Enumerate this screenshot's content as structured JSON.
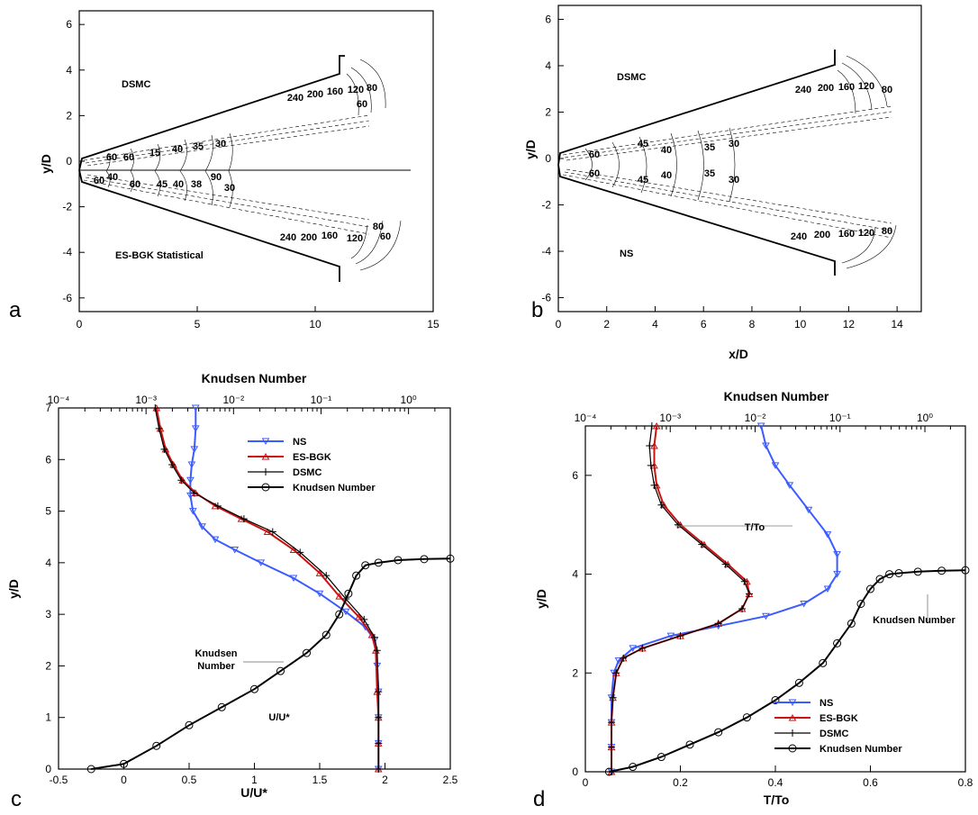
{
  "panels": {
    "a": {
      "letter": "a",
      "ylabel": "y/D",
      "xlabel": "",
      "label_top": "DSMC",
      "label_bottom": "ES-BGK Statistical",
      "xticks": [
        "0",
        "5",
        "10",
        "15"
      ],
      "yticks": [
        "6",
        "4",
        "2",
        "0",
        "-2",
        "-4",
        "-6"
      ],
      "contours_top": [
        "240",
        "200",
        "160",
        "120",
        "80",
        "60",
        "15",
        "40",
        "35",
        "30",
        "60",
        "60"
      ],
      "contours_mid": [
        "40",
        "45",
        "40",
        "38",
        "60",
        "30",
        "60",
        "90"
      ],
      "contours_bottom": [
        "240",
        "200",
        "160",
        "120",
        "80",
        "60"
      ]
    },
    "b": {
      "letter": "b",
      "ylabel": "y/D",
      "xlabel": "x/D",
      "label_top": "DSMC",
      "label_bottom": "NS",
      "xticks": [
        "0",
        "2",
        "4",
        "6",
        "8",
        "10",
        "12",
        "14"
      ],
      "yticks": [
        "6",
        "4",
        "2",
        "0",
        "-2",
        "-4",
        "-6"
      ],
      "contours_top": [
        "240",
        "200",
        "160",
        "120",
        "80",
        "60",
        "45",
        "40",
        "35",
        "30"
      ],
      "contours_bottom": [
        "240",
        "200",
        "160",
        "120",
        "80",
        "60",
        "45",
        "40",
        "35",
        "30"
      ]
    },
    "c": {
      "letter": "c",
      "top_title": "Knudsen Number",
      "xlabel": "U/U*",
      "ylabel": "y/D",
      "top_ticks": [
        "10⁻⁴",
        "10⁻³",
        "10⁻²",
        "10⁻¹",
        "10⁰"
      ],
      "xticks": [
        "-0.5",
        "0",
        "0.5",
        "1",
        "1.5",
        "2",
        "2.5"
      ],
      "yticks": [
        "0",
        "1",
        "2",
        "3",
        "4",
        "5",
        "6",
        "7"
      ],
      "anno_kn": [
        "Knudsen",
        "Number"
      ],
      "anno_u": "U/U*",
      "legend": [
        "NS",
        "ES-BGK",
        "DSMC",
        "Knudsen Number"
      ]
    },
    "d": {
      "letter": "d",
      "top_title": "Knudsen Number",
      "xlabel": "T/To",
      "ylabel": "y/D",
      "top_ticks": [
        "10⁻⁴",
        "10⁻³",
        "10⁻²",
        "10⁻¹",
        "10⁰"
      ],
      "xticks": [
        "0",
        "0.2",
        "0.4",
        "0.6",
        "0.8"
      ],
      "yticks": [
        "0",
        "2",
        "4",
        "6"
      ],
      "anno_t": "T/To",
      "anno_kn": "Knudsen Number",
      "legend": [
        "NS",
        "ES-BGK",
        "DSMC",
        "Knudsen Number"
      ]
    }
  },
  "colors": {
    "ns": "#3a5bff",
    "esbgk": "#cc1111",
    "dsmc": "#000000",
    "kn": "#000000"
  },
  "chart_data": [
    {
      "type": "line",
      "panel": "c",
      "title": "Knudsen Number",
      "xlabel": "U/U*",
      "ylabel": "y/D",
      "xlim": [
        -0.5,
        2.5
      ],
      "ylim": [
        0,
        7
      ],
      "top_axis": {
        "label": "Knudsen Number",
        "scale": "log",
        "range": [
          0.0001,
          3
        ]
      },
      "series": [
        {
          "name": "NS",
          "x": [
            0.55,
            0.55,
            0.54,
            0.52,
            0.51,
            0.51,
            0.53,
            0.6,
            0.7,
            0.85,
            1.05,
            1.3,
            1.5,
            1.7,
            1.85,
            1.92,
            1.94,
            1.95,
            1.95,
            1.95,
            1.95
          ],
          "y": [
            7.0,
            6.6,
            6.2,
            5.9,
            5.6,
            5.3,
            5.0,
            4.7,
            4.45,
            4.25,
            4.0,
            3.7,
            3.4,
            3.05,
            2.75,
            2.5,
            2.0,
            1.5,
            1.0,
            0.5,
            0.0
          ]
        },
        {
          "name": "ES-BGK",
          "x": [
            0.25,
            0.28,
            0.32,
            0.38,
            0.45,
            0.55,
            0.7,
            0.9,
            1.1,
            1.3,
            1.5,
            1.65,
            1.8,
            1.9,
            1.93,
            1.94,
            1.95,
            1.95,
            1.95
          ],
          "y": [
            7.0,
            6.6,
            6.2,
            5.9,
            5.6,
            5.35,
            5.1,
            4.85,
            4.6,
            4.25,
            3.8,
            3.35,
            2.95,
            2.6,
            2.3,
            1.5,
            1.0,
            0.5,
            0.0
          ]
        },
        {
          "name": "DSMC",
          "x": [
            0.24,
            0.27,
            0.31,
            0.37,
            0.44,
            0.54,
            0.72,
            0.92,
            1.14,
            1.35,
            1.55,
            1.7,
            1.84,
            1.92,
            1.94,
            1.95,
            1.95,
            1.95,
            1.95
          ],
          "y": [
            7.0,
            6.6,
            6.2,
            5.9,
            5.6,
            5.35,
            5.1,
            4.85,
            4.6,
            4.2,
            3.75,
            3.3,
            2.9,
            2.55,
            2.3,
            1.5,
            1.0,
            0.5,
            0.0
          ]
        },
        {
          "name": "Knudsen Number",
          "x": [
            -0.25,
            0.0,
            0.25,
            0.5,
            0.75,
            1.0,
            1.2,
            1.4,
            1.55,
            1.65,
            1.72,
            1.78,
            1.85,
            1.95,
            2.1,
            2.3,
            2.5
          ],
          "y": [
            0.0,
            0.1,
            0.45,
            0.85,
            1.2,
            1.55,
            1.9,
            2.25,
            2.6,
            3.0,
            3.4,
            3.75,
            3.95,
            4.0,
            4.05,
            4.07,
            4.08
          ]
        }
      ]
    },
    {
      "type": "line",
      "panel": "d",
      "title": "Knudsen Number",
      "xlabel": "T/To",
      "ylabel": "y/D",
      "xlim": [
        0,
        0.8
      ],
      "ylim": [
        0,
        7
      ],
      "top_axis": {
        "label": "Knudsen Number",
        "scale": "log",
        "range": [
          0.0001,
          3
        ]
      },
      "series": [
        {
          "name": "NS",
          "x": [
            0.37,
            0.38,
            0.4,
            0.43,
            0.47,
            0.51,
            0.53,
            0.53,
            0.51,
            0.46,
            0.38,
            0.28,
            0.18,
            0.1,
            0.07,
            0.06,
            0.055,
            0.055,
            0.055,
            0.055
          ],
          "y": [
            7.0,
            6.6,
            6.2,
            5.8,
            5.3,
            4.8,
            4.4,
            4.0,
            3.7,
            3.4,
            3.15,
            2.95,
            2.75,
            2.5,
            2.25,
            2.0,
            1.5,
            1.0,
            0.5,
            0.0
          ]
        },
        {
          "name": "ES-BGK",
          "x": [
            0.15,
            0.145,
            0.145,
            0.15,
            0.165,
            0.2,
            0.25,
            0.3,
            0.34,
            0.345,
            0.33,
            0.28,
            0.2,
            0.12,
            0.08,
            0.065,
            0.058,
            0.055,
            0.055,
            0.055
          ],
          "y": [
            7.0,
            6.6,
            6.2,
            5.8,
            5.4,
            5.0,
            4.6,
            4.2,
            3.85,
            3.6,
            3.3,
            3.0,
            2.75,
            2.5,
            2.3,
            2.0,
            1.5,
            1.0,
            0.5,
            0.0
          ]
        },
        {
          "name": "DSMC",
          "x": [
            0.14,
            0.135,
            0.138,
            0.145,
            0.16,
            0.195,
            0.245,
            0.295,
            0.335,
            0.345,
            0.33,
            0.28,
            0.2,
            0.12,
            0.08,
            0.065,
            0.058,
            0.055,
            0.055,
            0.055
          ],
          "y": [
            7.0,
            6.6,
            6.2,
            5.8,
            5.4,
            5.0,
            4.6,
            4.2,
            3.85,
            3.6,
            3.3,
            3.0,
            2.75,
            2.5,
            2.3,
            2.0,
            1.5,
            1.0,
            0.5,
            0.0
          ]
        },
        {
          "name": "Knudsen Number",
          "x": [
            0.05,
            0.1,
            0.16,
            0.22,
            0.28,
            0.34,
            0.4,
            0.45,
            0.5,
            0.53,
            0.56,
            0.58,
            0.6,
            0.62,
            0.64,
            0.66,
            0.7,
            0.75,
            0.8
          ],
          "y": [
            0.0,
            0.1,
            0.3,
            0.55,
            0.8,
            1.1,
            1.45,
            1.8,
            2.2,
            2.6,
            3.0,
            3.4,
            3.7,
            3.9,
            4.0,
            4.02,
            4.05,
            4.07,
            4.08
          ]
        }
      ]
    }
  ]
}
